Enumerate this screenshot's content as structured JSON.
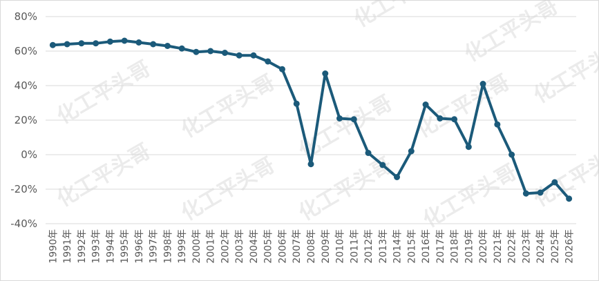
{
  "watermark": "化工平头哥",
  "chart_data": {
    "type": "line",
    "title": "",
    "xlabel": "",
    "ylabel": "",
    "ylim": [
      -40,
      80
    ],
    "yticks": [
      -40,
      -20,
      0,
      20,
      40,
      60,
      80
    ],
    "ytick_labels": [
      "-40%",
      "-20%",
      "0%",
      "20%",
      "40%",
      "60%",
      "80%"
    ],
    "grid": true,
    "legend": "none",
    "line_color": "#1b5a7a",
    "categories": [
      "1990年",
      "1991年",
      "1992年",
      "1993年",
      "1994年",
      "1995年",
      "1996年",
      "1997年",
      "1998年",
      "1999年",
      "2000年",
      "2001年",
      "2002年",
      "2003年",
      "2004年",
      "2005年",
      "2006年",
      "2007年",
      "2008年",
      "2009年",
      "2010年",
      "2011年",
      "2012年",
      "2013年",
      "2014年",
      "2015年",
      "2016年",
      "2017年",
      "2018年",
      "2019年",
      "2020年",
      "2021年",
      "2022年",
      "2023年",
      "2024年",
      "2025年",
      "2026年"
    ],
    "series": [
      {
        "values": [
          63.5,
          64,
          64.5,
          64.5,
          65.5,
          66,
          65,
          64,
          63,
          61.5,
          59.5,
          60,
          59,
          57.5,
          57.5,
          54,
          49.5,
          29.5,
          -5.5,
          47,
          21,
          20.5,
          1,
          -6,
          -13,
          2,
          29,
          21,
          20.5,
          4.5,
          41,
          17.5,
          0,
          -22.5,
          -22,
          -16,
          -25.5
        ]
      }
    ]
  }
}
